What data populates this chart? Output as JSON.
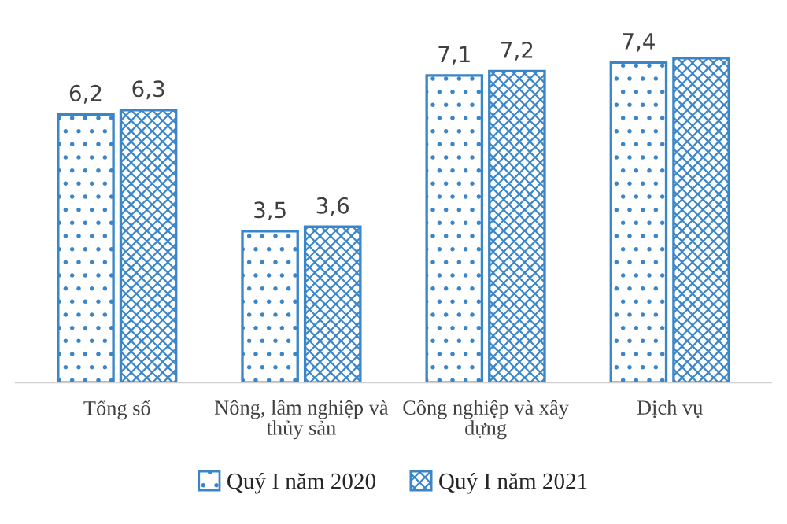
{
  "chart_data": {
    "type": "bar",
    "categories": [
      "Tổng số",
      "Nông, lâm nghiệp và thủy sản",
      "Công nghiệp và xây dựng",
      "Dịch vụ"
    ],
    "series": [
      {
        "name": "Quý I năm 2020",
        "color": "#3a86c8",
        "values": [
          6.2,
          3.5,
          7.1,
          7.4
        ],
        "value_labels": [
          "6,2",
          "3,5",
          "7,1",
          "7,4"
        ]
      },
      {
        "name": "Quý I năm 2021",
        "color": "#3a86c8",
        "values": [
          6.3,
          3.6,
          7.2,
          7.5
        ],
        "value_labels": [
          "6,3",
          "3,6",
          "7,2",
          null
        ]
      }
    ],
    "legend": "bottom",
    "grid": false
  }
}
